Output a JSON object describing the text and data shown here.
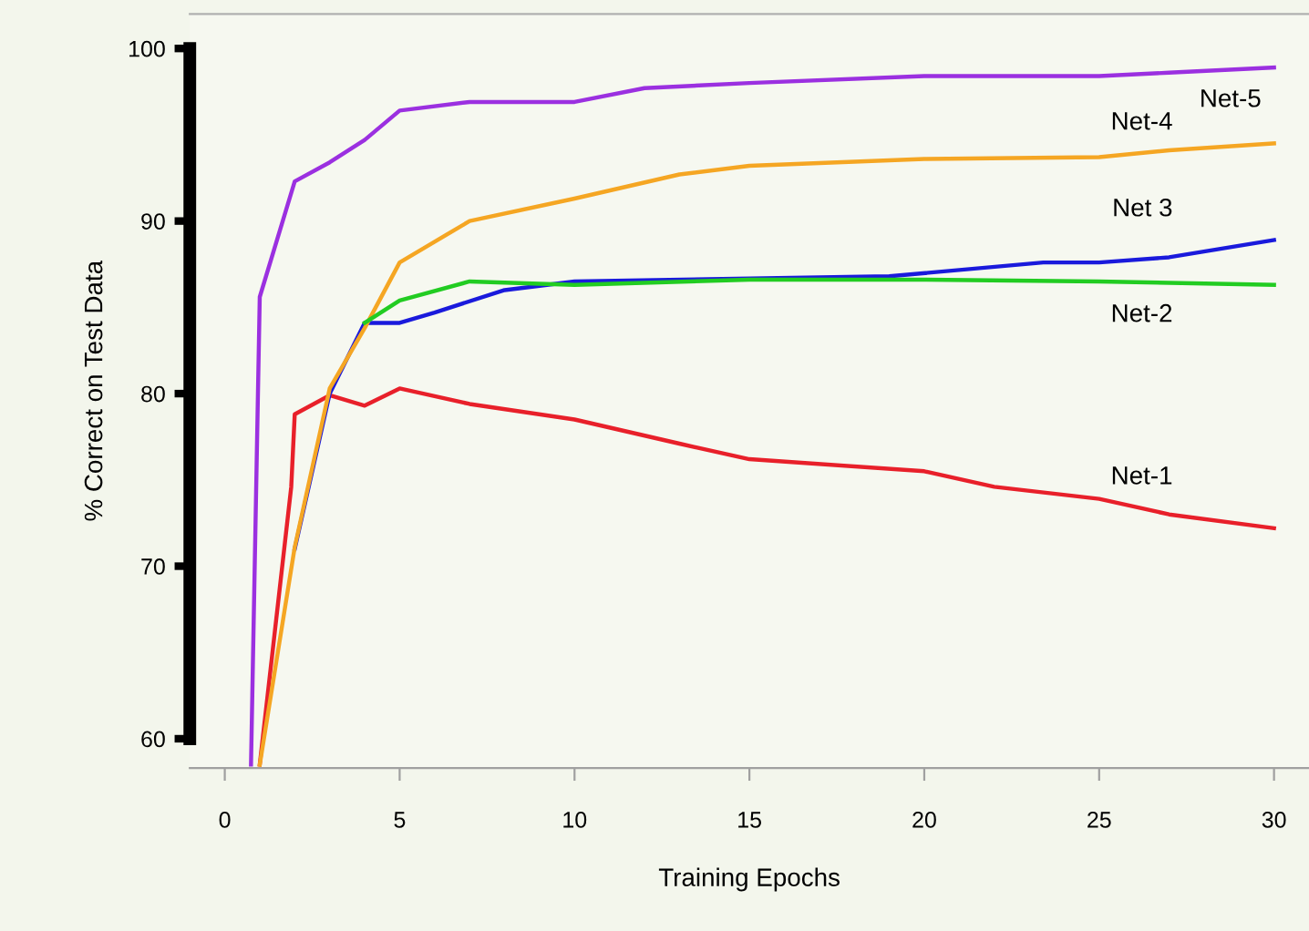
{
  "chart_data": {
    "type": "line",
    "xlabel": "Training Epochs",
    "ylabel": "% Correct on Test Data",
    "xlim": [
      -1,
      31
    ],
    "ylim": [
      58.3,
      102
    ],
    "xticks": [
      0,
      5,
      10,
      15,
      20,
      25,
      30
    ],
    "yticks": [
      60,
      70,
      80,
      90,
      100
    ],
    "grid": false,
    "legend": false,
    "marker": "none",
    "line_style": "solid",
    "series": [
      {
        "name": "Net-1",
        "color": "#e8202a",
        "x": [
          1,
          1.9,
          2,
          3,
          4,
          5,
          7,
          10,
          13,
          15,
          20,
          22,
          25,
          27,
          30
        ],
        "values": [
          58.5,
          74.6,
          78.8,
          79.9,
          79.3,
          80.3,
          79.4,
          78.5,
          77.1,
          76.2,
          75.5,
          74.6,
          73.9,
          73.0,
          72.2
        ]
      },
      {
        "name": "Net-2",
        "color": "#22cc22",
        "x": [
          4,
          5,
          7,
          10,
          15,
          20,
          25,
          30
        ],
        "values": [
          84.1,
          85.4,
          86.5,
          86.3,
          86.6,
          86.6,
          86.5,
          86.3
        ]
      },
      {
        "name": "Net 3",
        "color": "#1a1adc",
        "x": [
          2,
          3,
          4,
          5,
          6,
          8,
          10,
          19,
          23.4,
          25,
          27,
          30
        ],
        "values": [
          71.0,
          80.0,
          84.1,
          84.1,
          84.7,
          86.0,
          86.5,
          86.8,
          87.6,
          87.6,
          87.9,
          88.9
        ]
      },
      {
        "name": "Net-4",
        "color": "#f5a623",
        "x": [
          1,
          2,
          3,
          4,
          5,
          6,
          7,
          10,
          13,
          15,
          20,
          25,
          27,
          30
        ],
        "values": [
          58.5,
          71.1,
          80.3,
          83.8,
          87.6,
          88.8,
          90.0,
          91.3,
          92.7,
          93.2,
          93.6,
          93.7,
          94.1,
          94.5
        ]
      },
      {
        "name": "Net-5",
        "color": "#9b30e0",
        "x": [
          0.75,
          1,
          2,
          3,
          4,
          5,
          7,
          10,
          12,
          15,
          20,
          25,
          27,
          30
        ],
        "values": [
          58.5,
          85.6,
          92.3,
          93.4,
          94.7,
          96.4,
          96.9,
          96.9,
          97.7,
          98.0,
          98.4,
          98.4,
          98.6,
          98.9
        ]
      }
    ]
  }
}
